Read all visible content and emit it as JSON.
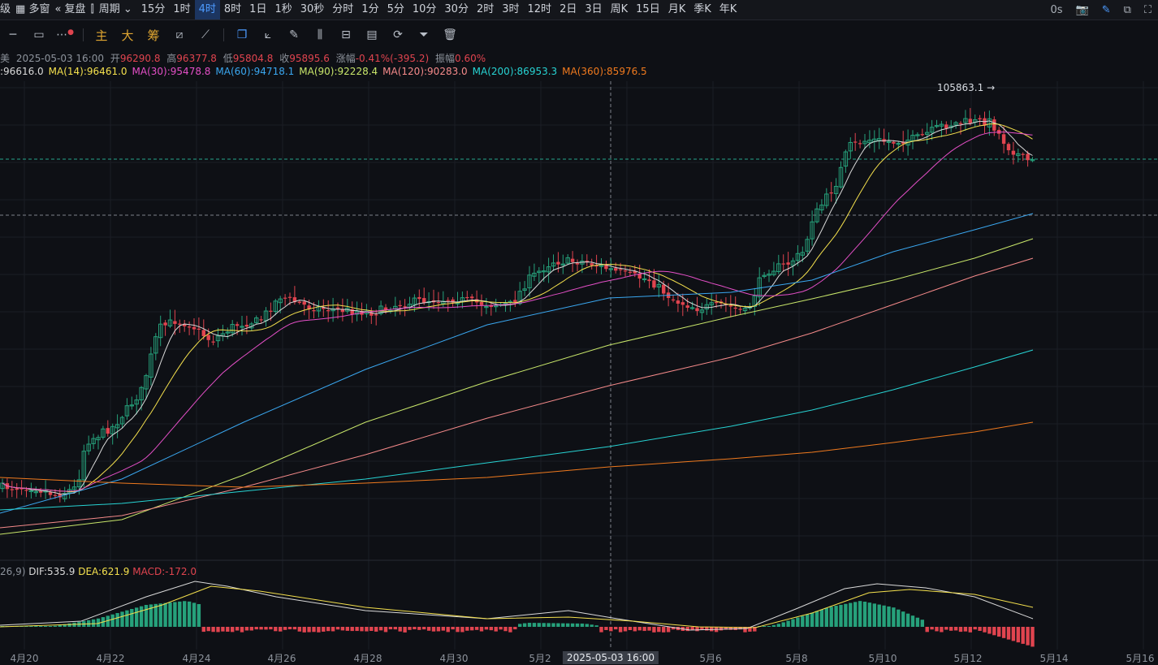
{
  "toolbar": {
    "lead_items": [
      {
        "label": "级",
        "name": "level-menu"
      },
      {
        "label": "多窗",
        "name": "multi-window-button",
        "icon": "grid-icon"
      },
      {
        "label": "复盘",
        "name": "replay-button",
        "icon": "rewind-icon"
      },
      {
        "label": "",
        "name": "chart-type-button",
        "icon": "candlestick-icon"
      },
      {
        "label": "周期",
        "name": "period-menu",
        "icon": "chevron-down-icon"
      }
    ],
    "timeframes": [
      "15分",
      "1时",
      "4时",
      "8时",
      "1日",
      "1秒",
      "30秒",
      "分时",
      "1分",
      "5分",
      "10分",
      "30分",
      "2时",
      "3时",
      "12时",
      "2日",
      "3日",
      "周K",
      "15日",
      "月K",
      "季K",
      "年K"
    ],
    "active_timeframe": "4时",
    "countdown": "0s"
  },
  "drawing_tools": [
    "horizontal-line-icon",
    "rectangle-icon",
    "more-dots-icon"
  ],
  "indicator_buttons": [
    "主",
    "大",
    "筹"
  ],
  "right_tools": [
    "copy-icon",
    "ruler-icon",
    "pen-icon",
    "bars-icon",
    "lock-icon",
    "note-icon",
    "magnet-icon",
    "filter-icon",
    "trash-icon"
  ],
  "ohlc": {
    "prefix": "美",
    "date": "2025-05-03 16:00",
    "open_label": "开",
    "open": "96290.8",
    "high_label": "高",
    "high": "96377.8",
    "low_label": "低",
    "low": "95804.8",
    "close_label": "收",
    "close": "95895.6",
    "change_label": "涨幅",
    "change": "-0.41%(-395.2)",
    "amp_label": "振幅",
    "amp": "0.60%"
  },
  "ma": [
    {
      "label": ":96616.0",
      "color": "#d9d9d9"
    },
    {
      "label": "MA(14):96461.0",
      "color": "#f4e04d"
    },
    {
      "label": "MA(30):95478.8",
      "color": "#e44fc7"
    },
    {
      "label": "MA(60):94718.1",
      "color": "#3aa7f0"
    },
    {
      "label": "MA(90):92228.4",
      "color": "#c8e66a"
    },
    {
      "label": "MA(120):90283.0",
      "color": "#f58a8a"
    },
    {
      "label": "MA(200):86953.3",
      "color": "#27d3d3"
    },
    {
      "label": "MA(360):85976.5",
      "color": "#f07a1e"
    }
  ],
  "high_marker": "105863.1 →",
  "macd": {
    "params": "26,9)",
    "dif": "DIF:535.9",
    "dea": "DEA:621.9",
    "macd": "MACD:-172.0"
  },
  "x_axis": {
    "labels": [
      "4月20",
      "4月22",
      "4月24",
      "4月26",
      "4月28",
      "4月30",
      "5月2",
      "5月6",
      "5月8",
      "5月10",
      "5月12",
      "5月14",
      "5月16"
    ],
    "highlight": "2025-05-03 16:00"
  },
  "colors": {
    "up": "#26a17b",
    "down": "#e0444f",
    "accent": "#4d9bff"
  },
  "chart_data": {
    "type": "candlestick",
    "approx_price_range": [
      84000,
      106500
    ],
    "ohlc_shown": {
      "date": "2025-05-03 16:00",
      "open": 96290.8,
      "high": 96377.8,
      "low": 95804.8,
      "close": 95895.6
    },
    "period_high": 105863.1,
    "moving_averages": {
      "MA(14)": 96461.0,
      "MA(30)": 95478.8,
      "MA(60)": 94718.1,
      "MA(90)": 92228.4,
      "MA(120)": 90283.0,
      "MA(200)": 86953.3,
      "MA(360)": 85976.5
    }
  }
}
